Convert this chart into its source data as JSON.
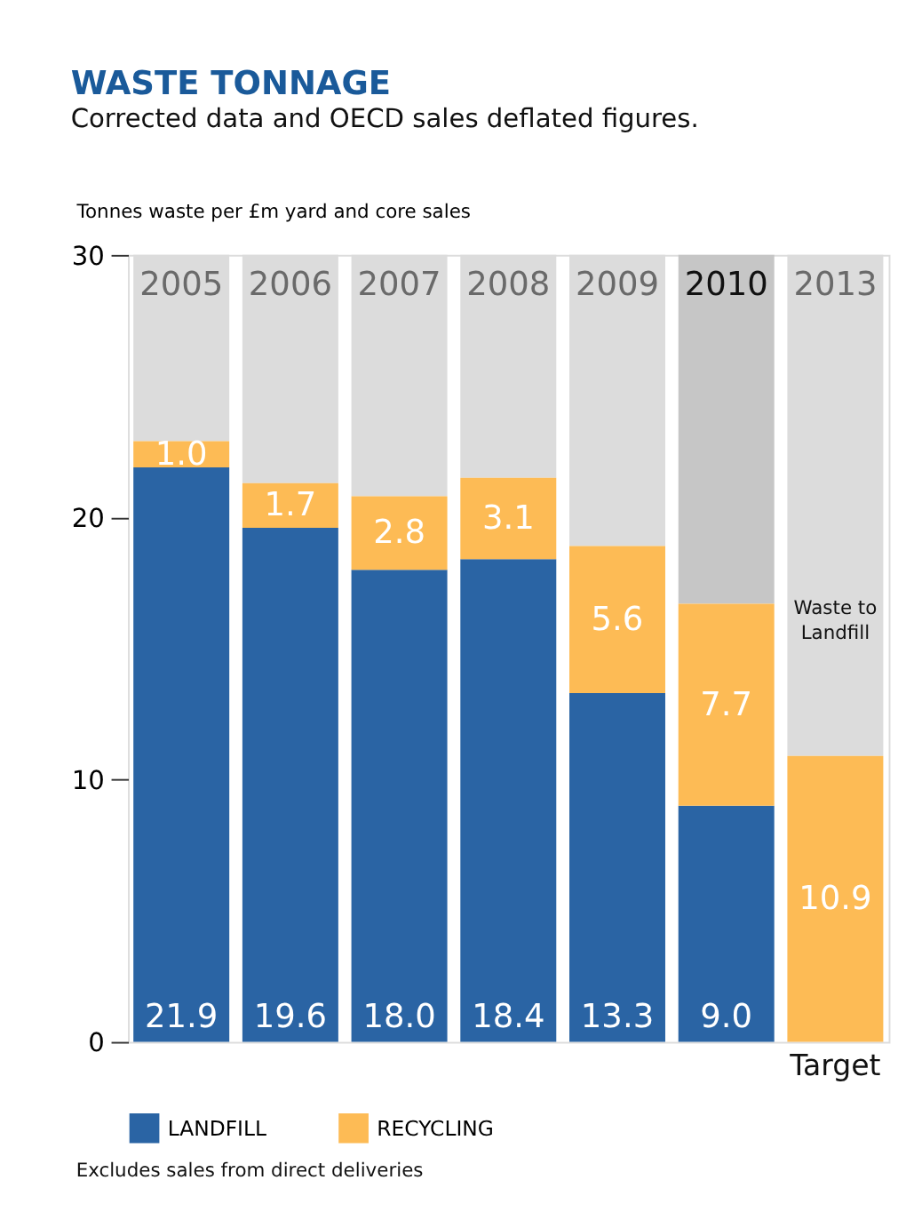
{
  "chart_data": {
    "type": "bar",
    "stacked": true,
    "title": "WASTE TONNAGE",
    "subtitle": "Corrected data and OECD sales deflated figures.",
    "ylabel": "Tonnes waste per £m yard and core sales",
    "categories": [
      "2005",
      "2006",
      "2007",
      "2008",
      "2009",
      "2010",
      "2013"
    ],
    "series": [
      {
        "name": "LANDFILL",
        "color": "#2a64a4",
        "values": [
          21.9,
          19.6,
          18.0,
          18.4,
          13.3,
          9.0,
          null
        ],
        "value_labels": [
          "21.9",
          "19.6",
          "18.0",
          "18.4",
          "13.3",
          "9.0",
          null
        ]
      },
      {
        "name": "RECYCLING",
        "color": "#fdbb55",
        "values": [
          1.0,
          1.7,
          2.8,
          3.1,
          5.6,
          7.7,
          10.9
        ],
        "value_labels": [
          "1.0",
          "1.7",
          "2.8",
          "3.1",
          "5.6",
          "7.7",
          "10.9"
        ]
      },
      {
        "colors": [
          "#dcdcdc",
          "#dcdcdc",
          "#dcdcdc",
          "#dcdcdc",
          "#dcdcdc",
          "#c6c6c6",
          "#dcdcdc"
        ],
        "values": [
          7.1,
          8.7,
          9.2,
          8.5,
          11.1,
          13.3,
          19.1
        ]
      }
    ],
    "ylim": [
      0,
      30
    ],
    "yticks": [
      0,
      10,
      20,
      30
    ],
    "grid": false,
    "legend": "bottom left",
    "tick_labels": "y",
    "annotations": [
      "Waste to Landfill",
      "Target",
      "Excludes sales from direct deliveries"
    ]
  }
}
